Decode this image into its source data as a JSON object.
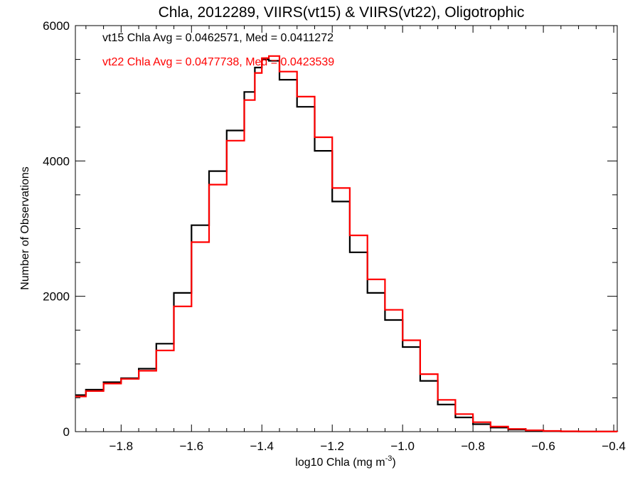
{
  "chart_data": {
    "type": "line",
    "title": "Chla, 2012289, VIIRS(vt15) & VIIRS(vt22), Oligotrophic",
    "xlabel": "log10 Chla (mg m",
    "xlabel_sup": "-3",
    "xlabel_suffix": ")",
    "ylabel": "Number of Observations",
    "xlim": [
      -1.93,
      -0.39
    ],
    "ylim": [
      0,
      6000
    ],
    "x_ticks": [
      -1.8,
      -1.6,
      -1.4,
      -1.2,
      -1.0,
      -0.8,
      -0.6,
      -0.4
    ],
    "x_tick_labels": [
      "−1.8",
      "−1.6",
      "−1.4",
      "−1.2",
      "−1.0",
      "−0.8",
      "−0.6",
      "−0.4"
    ],
    "y_ticks": [
      0,
      2000,
      4000,
      6000
    ],
    "y_tick_labels": [
      "0",
      "2000",
      "4000",
      "6000"
    ],
    "annotations": [
      {
        "text": "vt15 Chla Avg = 0.0462571, Med = 0.0411272",
        "color": "#000000"
      },
      {
        "text": "vt22 Chla Avg = 0.0477738, Med = 0.0423539",
        "color": "#ff0000"
      }
    ],
    "x": [
      -1.93,
      -1.9,
      -1.85,
      -1.8,
      -1.75,
      -1.7,
      -1.65,
      -1.6,
      -1.55,
      -1.5,
      -1.45,
      -1.42,
      -1.4,
      -1.38,
      -1.35,
      -1.3,
      -1.25,
      -1.2,
      -1.15,
      -1.1,
      -1.05,
      -1.0,
      -0.95,
      -0.9,
      -0.85,
      -0.8,
      -0.75,
      -0.7,
      -0.65,
      -0.6,
      -0.55,
      -0.5,
      -0.45,
      -0.39
    ],
    "series": [
      {
        "color": "#000000",
        "values": [
          540,
          620,
          730,
          790,
          930,
          1300,
          2050,
          3050,
          3850,
          4450,
          5020,
          5380,
          5500,
          5480,
          5200,
          4800,
          4150,
          3400,
          2650,
          2050,
          1650,
          1250,
          750,
          400,
          210,
          110,
          60,
          30,
          15,
          8,
          4,
          2,
          1,
          0
        ]
      },
      {
        "color": "#ff0000",
        "values": [
          520,
          600,
          710,
          780,
          900,
          1200,
          1850,
          2800,
          3650,
          4300,
          4900,
          5300,
          5520,
          5550,
          5320,
          4950,
          4350,
          3600,
          2900,
          2250,
          1800,
          1350,
          850,
          470,
          260,
          140,
          75,
          40,
          20,
          10,
          5,
          2,
          1,
          0
        ]
      }
    ]
  }
}
